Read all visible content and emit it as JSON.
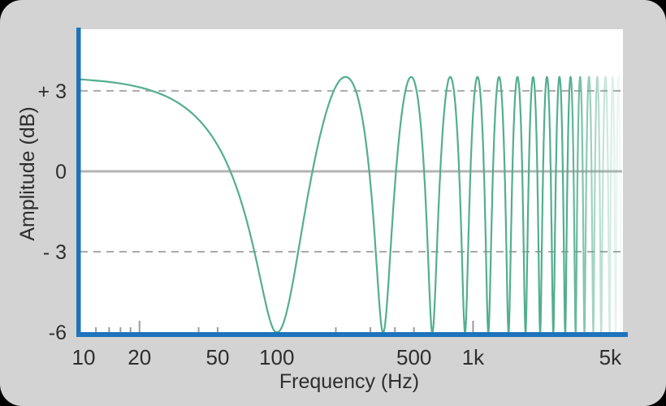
{
  "chart_data": {
    "type": "line",
    "title": "",
    "xlabel": "Frequency (Hz)",
    "ylabel": "Amplitude (dB)",
    "x_scale": "log",
    "x_range_hz": [
      10,
      5800
    ],
    "y_range_db": [
      -6,
      5.3
    ],
    "x_tick_labels": [
      {
        "hz": 10,
        "label": "10"
      },
      {
        "hz": 20,
        "label": "20"
      },
      {
        "hz": 50,
        "label": "50"
      },
      {
        "hz": 100,
        "label": "100"
      },
      {
        "hz": 500,
        "label": "500"
      },
      {
        "hz": 1000,
        "label": "1k"
      },
      {
        "hz": 5000,
        "label": "5k"
      }
    ],
    "x_axis_ticks": [
      {
        "hz": 12,
        "major": false
      },
      {
        "hz": 14,
        "major": false
      },
      {
        "hz": 16,
        "major": false
      },
      {
        "hz": 18,
        "major": false
      },
      {
        "hz": 20,
        "major": true
      },
      {
        "hz": 40,
        "major": false
      },
      {
        "hz": 50,
        "major": false
      },
      {
        "hz": 200,
        "major": false
      },
      {
        "hz": 300,
        "major": false
      },
      {
        "hz": 400,
        "major": false
      },
      {
        "hz": 500,
        "major": false
      },
      {
        "hz": 1000,
        "major": true
      }
    ],
    "y_ticks": [
      {
        "db": 3,
        "label": "+ 3",
        "line": "dashed"
      },
      {
        "db": 0,
        "label": "0",
        "line": "solid"
      },
      {
        "db": -3,
        "label": "- 3",
        "line": "dashed"
      },
      {
        "db": -6,
        "label": "-6",
        "line": "none"
      }
    ],
    "series": [
      {
        "name": "comb-filter-response",
        "mix_gain": 0.5,
        "peak_db": 3.52,
        "notch_db": -6.02,
        "level_at_10hz_db": 3.4,
        "notch_frequencies_hz": [
          100,
          348,
          620,
          910,
          1196,
          1516,
          1850,
          2196,
          2562,
          2946,
          3330,
          3692,
          4098,
          4492,
          4962,
          5327
        ],
        "fade_out_start_fraction": 0.9
      }
    ],
    "legend": "none",
    "grid": "horizontal-only"
  },
  "colors": {
    "background": "#d3d3d3",
    "frame_corners": "#000000",
    "plot_background": "#ffffff",
    "axis_blue": "#1e73bd",
    "curve_teal": "#53ae8f",
    "zero_line": "#b3b3b3",
    "dashed_line": "#a9a9a9",
    "tick_mark": "#9b9b9b",
    "label_text": "#2e2e2e"
  }
}
